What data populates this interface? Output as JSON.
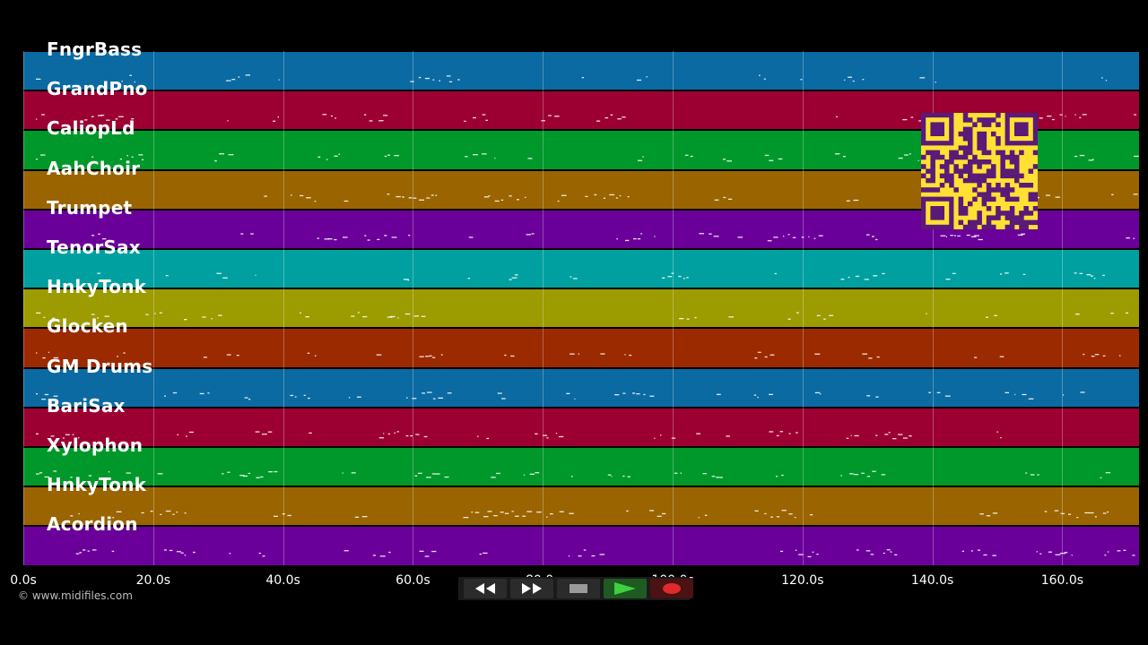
{
  "tracks": [
    {
      "name": "FngrBass",
      "color": "#0b6aa2"
    },
    {
      "name": "GrandPno",
      "color": "#9c0033"
    },
    {
      "name": "CaliopLd",
      "color": "#00982a"
    },
    {
      "name": "AahChoir",
      "color": "#9a6400"
    },
    {
      "name": "Trumpet",
      "color": "#6a0099"
    },
    {
      "name": "TenorSax",
      "color": "#00a0a0"
    },
    {
      "name": "HnkyTonk",
      "color": "#9c9c00"
    },
    {
      "name": "Glocken",
      "color": "#9c2a00"
    },
    {
      "name": "GM Drums",
      "color": "#0b6aa2"
    },
    {
      "name": "BariSax",
      "color": "#9c0033"
    },
    {
      "name": "Xylophon",
      "color": "#00982a"
    },
    {
      "name": "HnkyTonk",
      "color": "#9a6400"
    },
    {
      "name": "Acordion",
      "color": "#6a0099"
    }
  ],
  "timeline": {
    "ticks": [
      "0.0s",
      "20.0s",
      "40.0s",
      "60.0s",
      "80.0s",
      "100.0s",
      "120.0s",
      "140.0s",
      "160.0s"
    ]
  },
  "copyright": "© www.midifiles.com",
  "transport": {
    "rewind": "rewind-icon",
    "fast_forward": "fast-forward-icon",
    "stop": "stop-icon",
    "play": "play-icon",
    "record": "record-icon"
  }
}
